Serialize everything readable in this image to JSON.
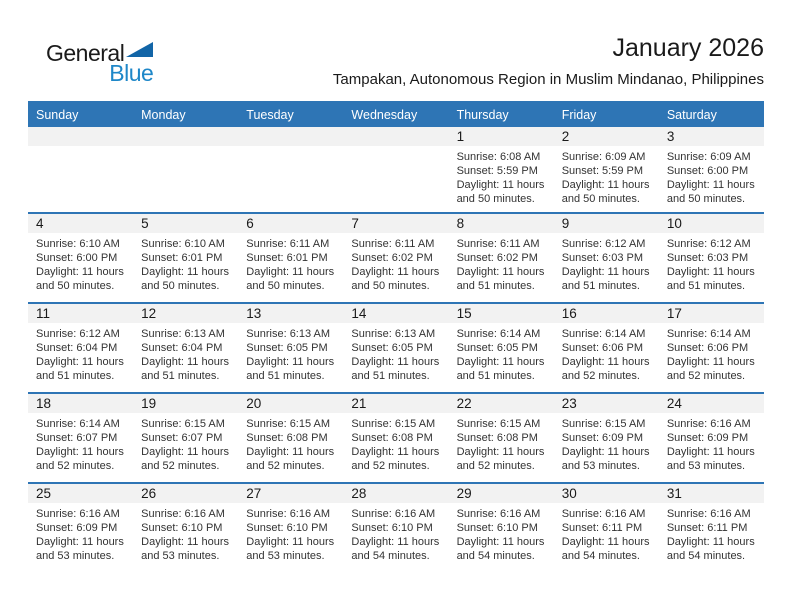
{
  "logo": {
    "part1": "General",
    "part2": "Blue",
    "triangle_icon": "flag-triangle",
    "triangle_color": "#1265a7",
    "blue_text_color": "#1e87c8"
  },
  "title": "January 2026",
  "subtitle": "Tampakan, Autonomous Region in Muslim Mindanao, Philippines",
  "colors": {
    "accent_blue": "#2e75b5",
    "day_band_gray": "#f2f2f2",
    "text_dark": "#1a1a1a",
    "info_text": "#333333"
  },
  "weekdays": [
    "Sunday",
    "Monday",
    "Tuesday",
    "Wednesday",
    "Thursday",
    "Friday",
    "Saturday"
  ],
  "weeks": [
    [
      {
        "day": "",
        "sunrise": "",
        "sunset": "",
        "daylight1": "",
        "daylight2": ""
      },
      {
        "day": "",
        "sunrise": "",
        "sunset": "",
        "daylight1": "",
        "daylight2": ""
      },
      {
        "day": "",
        "sunrise": "",
        "sunset": "",
        "daylight1": "",
        "daylight2": ""
      },
      {
        "day": "",
        "sunrise": "",
        "sunset": "",
        "daylight1": "",
        "daylight2": ""
      },
      {
        "day": "1",
        "sunrise": "Sunrise: 6:08 AM",
        "sunset": "Sunset: 5:59 PM",
        "daylight1": "Daylight: 11 hours",
        "daylight2": "and 50 minutes."
      },
      {
        "day": "2",
        "sunrise": "Sunrise: 6:09 AM",
        "sunset": "Sunset: 5:59 PM",
        "daylight1": "Daylight: 11 hours",
        "daylight2": "and 50 minutes."
      },
      {
        "day": "3",
        "sunrise": "Sunrise: 6:09 AM",
        "sunset": "Sunset: 6:00 PM",
        "daylight1": "Daylight: 11 hours",
        "daylight2": "and 50 minutes."
      }
    ],
    [
      {
        "day": "4",
        "sunrise": "Sunrise: 6:10 AM",
        "sunset": "Sunset: 6:00 PM",
        "daylight1": "Daylight: 11 hours",
        "daylight2": "and 50 minutes."
      },
      {
        "day": "5",
        "sunrise": "Sunrise: 6:10 AM",
        "sunset": "Sunset: 6:01 PM",
        "daylight1": "Daylight: 11 hours",
        "daylight2": "and 50 minutes."
      },
      {
        "day": "6",
        "sunrise": "Sunrise: 6:11 AM",
        "sunset": "Sunset: 6:01 PM",
        "daylight1": "Daylight: 11 hours",
        "daylight2": "and 50 minutes."
      },
      {
        "day": "7",
        "sunrise": "Sunrise: 6:11 AM",
        "sunset": "Sunset: 6:02 PM",
        "daylight1": "Daylight: 11 hours",
        "daylight2": "and 50 minutes."
      },
      {
        "day": "8",
        "sunrise": "Sunrise: 6:11 AM",
        "sunset": "Sunset: 6:02 PM",
        "daylight1": "Daylight: 11 hours",
        "daylight2": "and 51 minutes."
      },
      {
        "day": "9",
        "sunrise": "Sunrise: 6:12 AM",
        "sunset": "Sunset: 6:03 PM",
        "daylight1": "Daylight: 11 hours",
        "daylight2": "and 51 minutes."
      },
      {
        "day": "10",
        "sunrise": "Sunrise: 6:12 AM",
        "sunset": "Sunset: 6:03 PM",
        "daylight1": "Daylight: 11 hours",
        "daylight2": "and 51 minutes."
      }
    ],
    [
      {
        "day": "11",
        "sunrise": "Sunrise: 6:12 AM",
        "sunset": "Sunset: 6:04 PM",
        "daylight1": "Daylight: 11 hours",
        "daylight2": "and 51 minutes."
      },
      {
        "day": "12",
        "sunrise": "Sunrise: 6:13 AM",
        "sunset": "Sunset: 6:04 PM",
        "daylight1": "Daylight: 11 hours",
        "daylight2": "and 51 minutes."
      },
      {
        "day": "13",
        "sunrise": "Sunrise: 6:13 AM",
        "sunset": "Sunset: 6:05 PM",
        "daylight1": "Daylight: 11 hours",
        "daylight2": "and 51 minutes."
      },
      {
        "day": "14",
        "sunrise": "Sunrise: 6:13 AM",
        "sunset": "Sunset: 6:05 PM",
        "daylight1": "Daylight: 11 hours",
        "daylight2": "and 51 minutes."
      },
      {
        "day": "15",
        "sunrise": "Sunrise: 6:14 AM",
        "sunset": "Sunset: 6:05 PM",
        "daylight1": "Daylight: 11 hours",
        "daylight2": "and 51 minutes."
      },
      {
        "day": "16",
        "sunrise": "Sunrise: 6:14 AM",
        "sunset": "Sunset: 6:06 PM",
        "daylight1": "Daylight: 11 hours",
        "daylight2": "and 52 minutes."
      },
      {
        "day": "17",
        "sunrise": "Sunrise: 6:14 AM",
        "sunset": "Sunset: 6:06 PM",
        "daylight1": "Daylight: 11 hours",
        "daylight2": "and 52 minutes."
      }
    ],
    [
      {
        "day": "18",
        "sunrise": "Sunrise: 6:14 AM",
        "sunset": "Sunset: 6:07 PM",
        "daylight1": "Daylight: 11 hours",
        "daylight2": "and 52 minutes."
      },
      {
        "day": "19",
        "sunrise": "Sunrise: 6:15 AM",
        "sunset": "Sunset: 6:07 PM",
        "daylight1": "Daylight: 11 hours",
        "daylight2": "and 52 minutes."
      },
      {
        "day": "20",
        "sunrise": "Sunrise: 6:15 AM",
        "sunset": "Sunset: 6:08 PM",
        "daylight1": "Daylight: 11 hours",
        "daylight2": "and 52 minutes."
      },
      {
        "day": "21",
        "sunrise": "Sunrise: 6:15 AM",
        "sunset": "Sunset: 6:08 PM",
        "daylight1": "Daylight: 11 hours",
        "daylight2": "and 52 minutes."
      },
      {
        "day": "22",
        "sunrise": "Sunrise: 6:15 AM",
        "sunset": "Sunset: 6:08 PM",
        "daylight1": "Daylight: 11 hours",
        "daylight2": "and 52 minutes."
      },
      {
        "day": "23",
        "sunrise": "Sunrise: 6:15 AM",
        "sunset": "Sunset: 6:09 PM",
        "daylight1": "Daylight: 11 hours",
        "daylight2": "and 53 minutes."
      },
      {
        "day": "24",
        "sunrise": "Sunrise: 6:16 AM",
        "sunset": "Sunset: 6:09 PM",
        "daylight1": "Daylight: 11 hours",
        "daylight2": "and 53 minutes."
      }
    ],
    [
      {
        "day": "25",
        "sunrise": "Sunrise: 6:16 AM",
        "sunset": "Sunset: 6:09 PM",
        "daylight1": "Daylight: 11 hours",
        "daylight2": "and 53 minutes."
      },
      {
        "day": "26",
        "sunrise": "Sunrise: 6:16 AM",
        "sunset": "Sunset: 6:10 PM",
        "daylight1": "Daylight: 11 hours",
        "daylight2": "and 53 minutes."
      },
      {
        "day": "27",
        "sunrise": "Sunrise: 6:16 AM",
        "sunset": "Sunset: 6:10 PM",
        "daylight1": "Daylight: 11 hours",
        "daylight2": "and 53 minutes."
      },
      {
        "day": "28",
        "sunrise": "Sunrise: 6:16 AM",
        "sunset": "Sunset: 6:10 PM",
        "daylight1": "Daylight: 11 hours",
        "daylight2": "and 54 minutes."
      },
      {
        "day": "29",
        "sunrise": "Sunrise: 6:16 AM",
        "sunset": "Sunset: 6:10 PM",
        "daylight1": "Daylight: 11 hours",
        "daylight2": "and 54 minutes."
      },
      {
        "day": "30",
        "sunrise": "Sunrise: 6:16 AM",
        "sunset": "Sunset: 6:11 PM",
        "daylight1": "Daylight: 11 hours",
        "daylight2": "and 54 minutes."
      },
      {
        "day": "31",
        "sunrise": "Sunrise: 6:16 AM",
        "sunset": "Sunset: 6:11 PM",
        "daylight1": "Daylight: 11 hours",
        "daylight2": "and 54 minutes."
      }
    ]
  ]
}
